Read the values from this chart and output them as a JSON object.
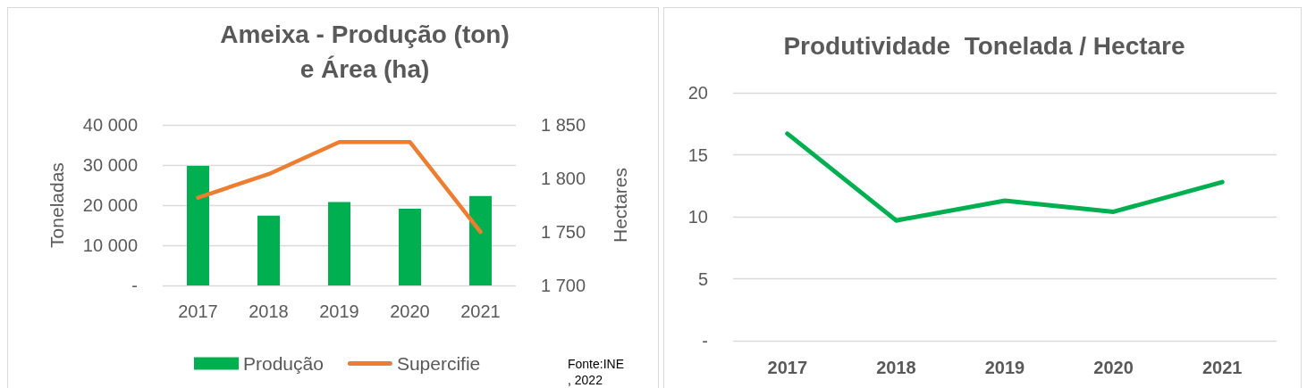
{
  "chart_data": [
    {
      "type": "bar",
      "title": "Ameixa - Produção (ton)\ne Área (ha)",
      "ylabel": "Toneladas",
      "y2label": "Hectares",
      "categories": [
        "2017",
        "2018",
        "2019",
        "2020",
        "2021"
      ],
      "series": [
        {
          "name": "Produção",
          "color": "#00b050",
          "values": [
            29800,
            17400,
            20800,
            19100,
            22300
          ]
        },
        {
          "name": "Supercifie",
          "type": "line",
          "axis": "y2",
          "color": "#ed7d31",
          "values": [
            1782,
            1804,
            1834,
            1834,
            1750
          ]
        }
      ],
      "ylim": [
        0,
        40000
      ],
      "yticks": [
        {
          "value": 0,
          "label": "-"
        },
        {
          "value": 10000,
          "label": "10 000"
        },
        {
          "value": 20000,
          "label": "20 000"
        },
        {
          "value": 30000,
          "label": "30 000"
        },
        {
          "value": 40000,
          "label": "40 000"
        }
      ],
      "y2lim": [
        1700,
        1850
      ],
      "y2ticks": [
        {
          "value": 1700,
          "label": "1 700"
        },
        {
          "value": 1750,
          "label": "1 750"
        },
        {
          "value": 1800,
          "label": "1 800"
        },
        {
          "value": 1850,
          "label": "1 850"
        }
      ],
      "grid": "y",
      "legend": "bottom",
      "marker": "none",
      "annotations": [
        "Fonte:INE\n, 2022"
      ]
    },
    {
      "type": "line",
      "title": "Produtividade  Tonelada / Hectare",
      "categories": [
        "2017",
        "2018",
        "2019",
        "2020",
        "2021"
      ],
      "series": [
        {
          "color": "#00b050",
          "values": [
            16.7,
            9.7,
            11.3,
            10.4,
            12.8
          ]
        }
      ],
      "ylim": [
        0,
        20
      ],
      "yticks": [
        {
          "value": 0,
          "label": "-"
        },
        5,
        10,
        15,
        20
      ],
      "grid": "y",
      "marker": "none"
    }
  ]
}
